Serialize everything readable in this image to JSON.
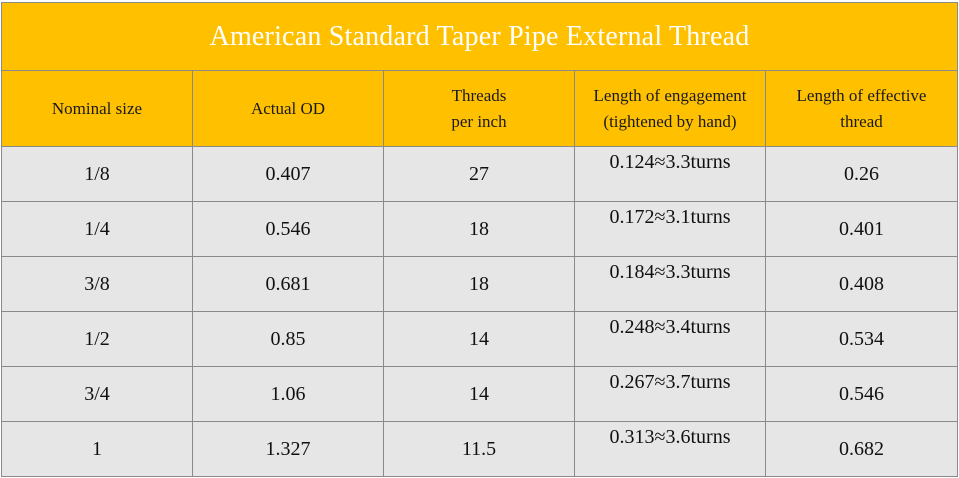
{
  "title": "American Standard Taper Pipe External Thread",
  "headers": [
    {
      "lines": [
        "Nominal size"
      ]
    },
    {
      "lines": [
        "Actual OD"
      ]
    },
    {
      "lines": [
        "Threads",
        "per inch"
      ]
    },
    {
      "lines": [
        "Length of engagement",
        "(tightened by hand)"
      ]
    },
    {
      "lines": [
        "Length of effective",
        "thread"
      ]
    }
  ],
  "rows": [
    {
      "size": "1/8",
      "od": "0.407",
      "tpi": "27",
      "engagement": "0.124≈3.3turns",
      "effective": "0.26"
    },
    {
      "size": "1/4",
      "od": "0.546",
      "tpi": "18",
      "engagement": "0.172≈3.1turns",
      "effective": "0.401"
    },
    {
      "size": "3/8",
      "od": "0.681",
      "tpi": "18",
      "engagement": "0.184≈3.3turns",
      "effective": "0.408"
    },
    {
      "size": "1/2",
      "od": "0.85",
      "tpi": "14",
      "engagement": "0.248≈3.4turns",
      "effective": "0.534"
    },
    {
      "size": "3/4",
      "od": "1.06",
      "tpi": "14",
      "engagement": "0.267≈3.7turns",
      "effective": "0.546"
    },
    {
      "size": "1",
      "od": "1.327",
      "tpi": "11.5",
      "engagement": "0.313≈3.6turns",
      "effective": "0.682"
    }
  ],
  "colors": {
    "header_fill": "#ffc000",
    "title_text": "#ffffff",
    "row_fill": "#e6e6e6",
    "grid_line": "#8a8a8a"
  }
}
